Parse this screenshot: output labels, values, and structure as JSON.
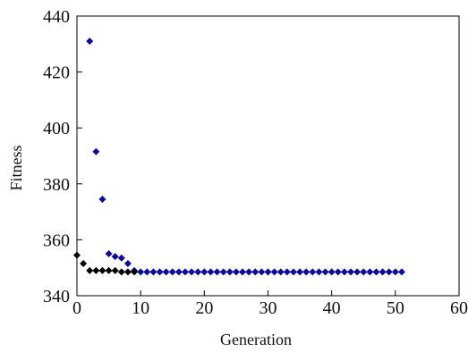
{
  "chart_data": {
    "type": "scatter",
    "title": "",
    "xlabel": "Generation",
    "ylabel": "Fitness",
    "xlim": [
      0,
      60
    ],
    "ylim": [
      340,
      440
    ],
    "xticks": [
      0,
      10,
      20,
      30,
      40,
      50,
      60
    ],
    "yticks": [
      340,
      360,
      380,
      400,
      420,
      440
    ],
    "grid": false,
    "legend": "none",
    "series": [
      {
        "color": "#0a0a9c",
        "marker": "diamond",
        "x": [
          2,
          3,
          4,
          5,
          6,
          7,
          8,
          9,
          10,
          11,
          12,
          13,
          14,
          15,
          16,
          17,
          18,
          19,
          20,
          21,
          22,
          23,
          24,
          25,
          26,
          27,
          28,
          29,
          30,
          31,
          32,
          33,
          34,
          35,
          36,
          37,
          38,
          39,
          40,
          41,
          42,
          43,
          44,
          45,
          46,
          47,
          48,
          49,
          50,
          51
        ],
        "values": [
          431,
          391.5,
          374.5,
          355,
          354,
          353.5,
          351.5,
          349,
          348.5,
          348.5,
          348.5,
          348.5,
          348.5,
          348.5,
          348.5,
          348.5,
          348.5,
          348.5,
          348.5,
          348.5,
          348.5,
          348.5,
          348.5,
          348.5,
          348.5,
          348.5,
          348.5,
          348.5,
          348.5,
          348.5,
          348.5,
          348.5,
          348.5,
          348.5,
          348.5,
          348.5,
          348.5,
          348.5,
          348.5,
          348.5,
          348.5,
          348.5,
          348.5,
          348.5,
          348.5,
          348.5,
          348.5,
          348.5,
          348.5,
          348.5
        ]
      },
      {
        "color": "#000000",
        "marker": "diamond",
        "x": [
          0,
          1,
          2,
          3,
          4,
          5,
          6,
          7,
          8,
          9
        ],
        "values": [
          354.5,
          351.5,
          349,
          349,
          349,
          349,
          349,
          348.5,
          348.5,
          348.5
        ]
      }
    ]
  }
}
